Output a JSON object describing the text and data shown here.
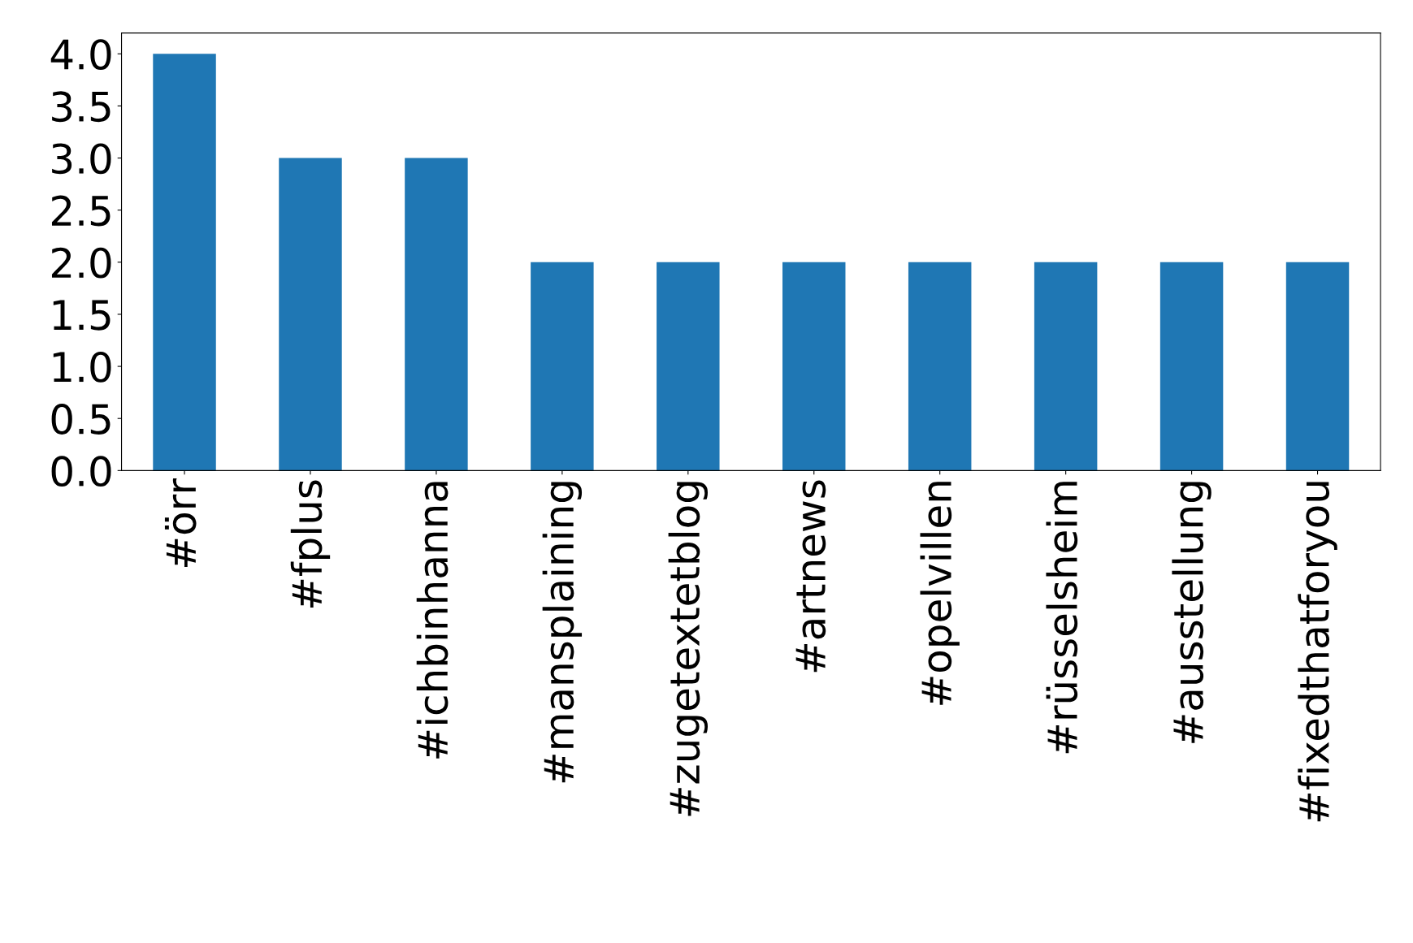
{
  "chart_data": {
    "type": "bar",
    "categories": [
      "#örr",
      "#fplus",
      "#ichbinhanna",
      "#mansplaining",
      "#zugetextetblog",
      "#artnews",
      "#opelvillen",
      "#rüsselsheim",
      "#ausstellung",
      "#fixedthatforyou"
    ],
    "values": [
      4,
      3,
      3,
      2,
      2,
      2,
      2,
      2,
      2,
      2
    ],
    "color": "#1f77b4",
    "ylim": [
      0,
      4.2
    ],
    "yticks": [
      {
        "value": 0,
        "label": "0.0"
      },
      {
        "value": 0.5,
        "label": "0.5"
      },
      {
        "value": 1,
        "label": "1.0"
      },
      {
        "value": 1.5,
        "label": "1.5"
      },
      {
        "value": 2,
        "label": "2.0"
      },
      {
        "value": 2.5,
        "label": "2.5"
      },
      {
        "value": 3,
        "label": "3.0"
      },
      {
        "value": 3.5,
        "label": "3.5"
      },
      {
        "value": 4,
        "label": "4.0"
      }
    ],
    "grid": false,
    "legend": false
  }
}
